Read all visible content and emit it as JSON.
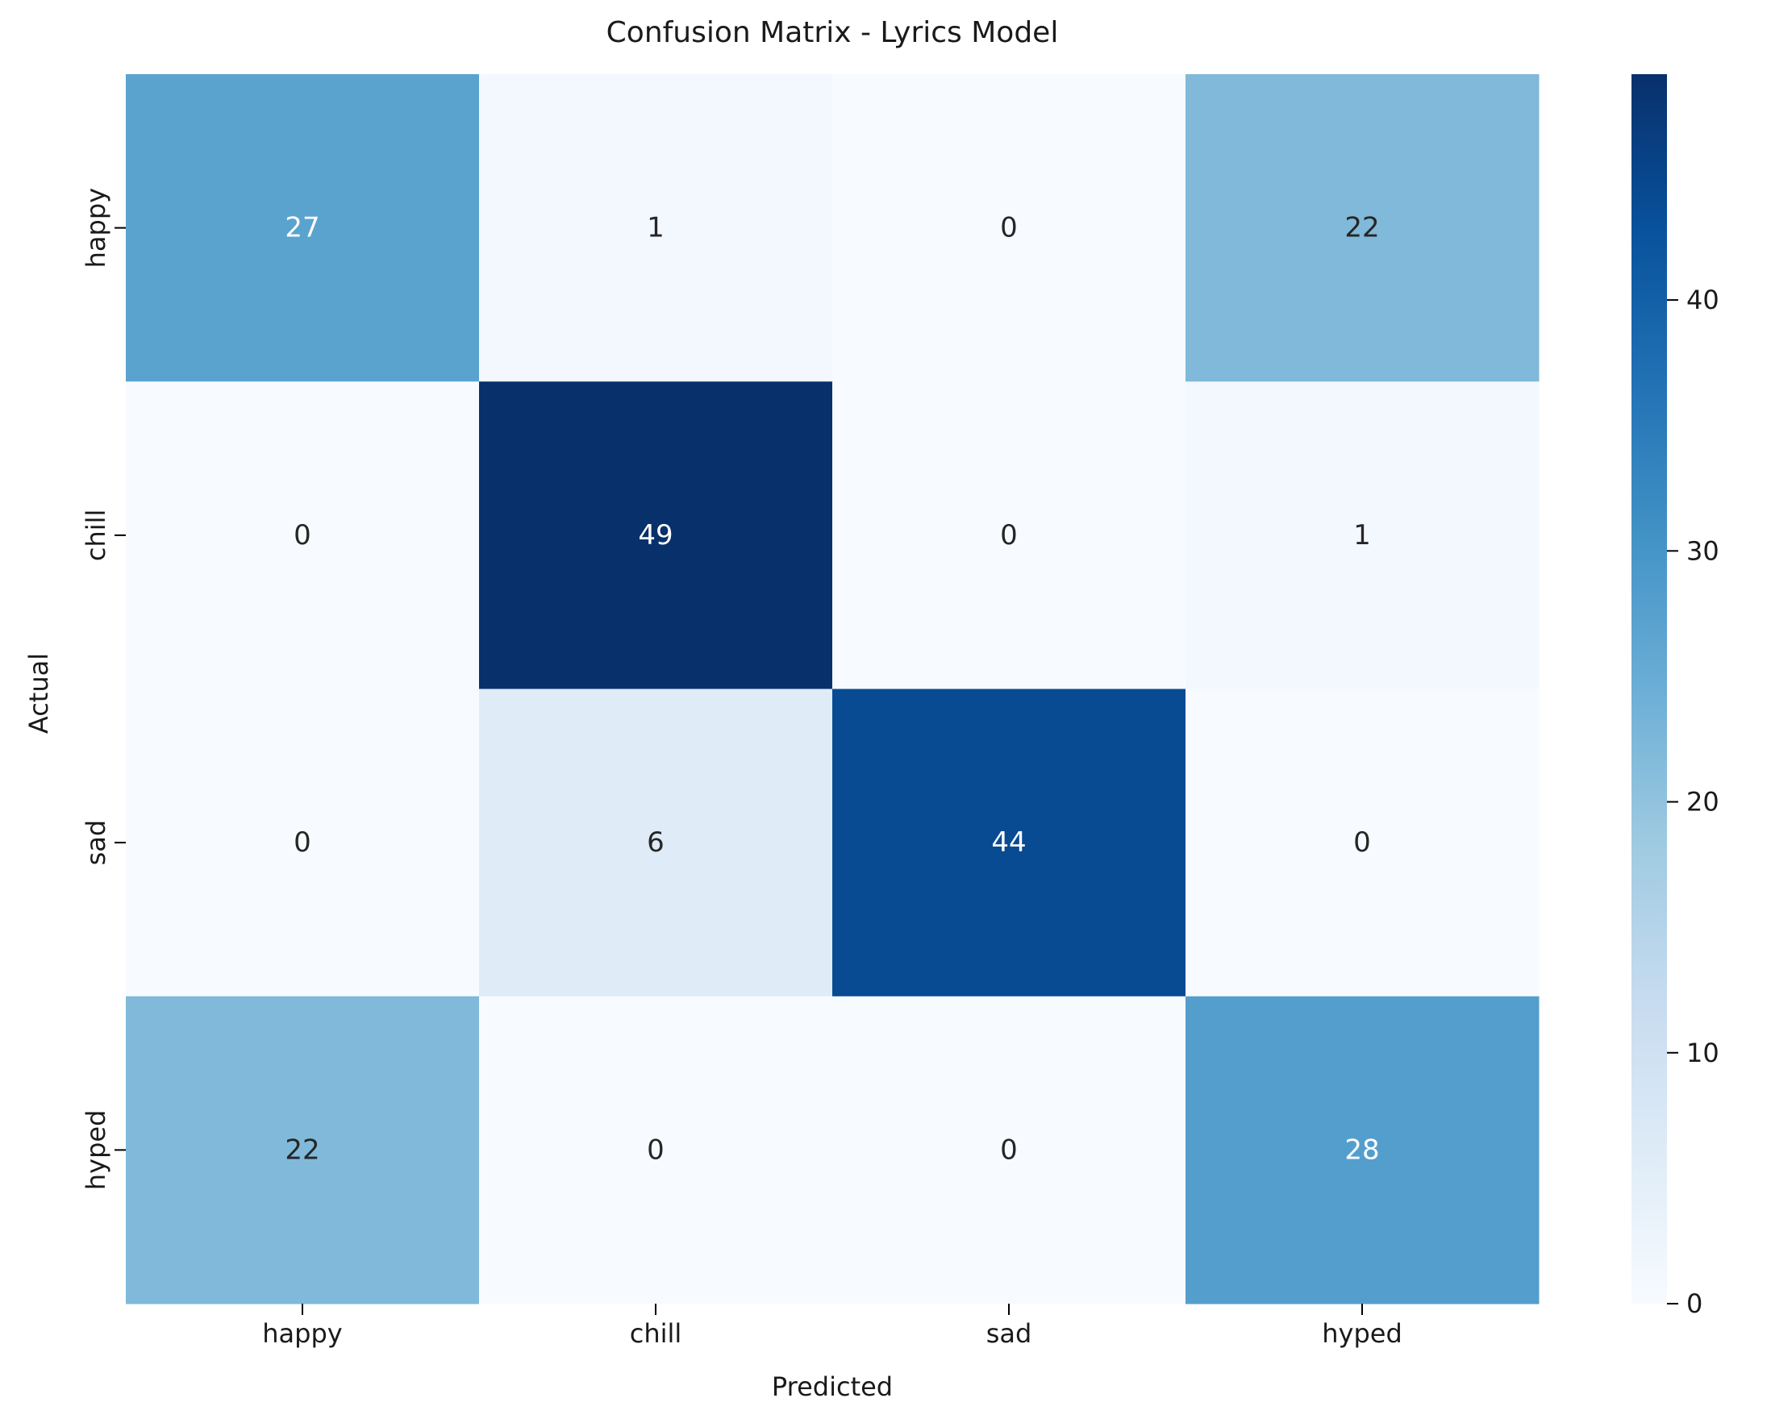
{
  "chart_data": {
    "type": "heatmap",
    "title": "Confusion Matrix - Lyrics Model",
    "xlabel": "Predicted",
    "ylabel": "Actual",
    "x_categories": [
      "happy",
      "chill",
      "sad",
      "hyped"
    ],
    "y_categories": [
      "happy",
      "chill",
      "sad",
      "hyped"
    ],
    "values": [
      [
        27,
        1,
        0,
        22
      ],
      [
        0,
        49,
        0,
        1
      ],
      [
        0,
        6,
        44,
        0
      ],
      [
        22,
        0,
        0,
        28
      ]
    ],
    "colormap": "Blues",
    "color_range": [
      0,
      49
    ],
    "colorbar": {
      "ticks": [
        0,
        10,
        20,
        30,
        40
      ],
      "tick_labels": [
        "0",
        "10",
        "20",
        "30",
        "40"
      ]
    },
    "grid": false,
    "legend": "colorbar-right"
  }
}
